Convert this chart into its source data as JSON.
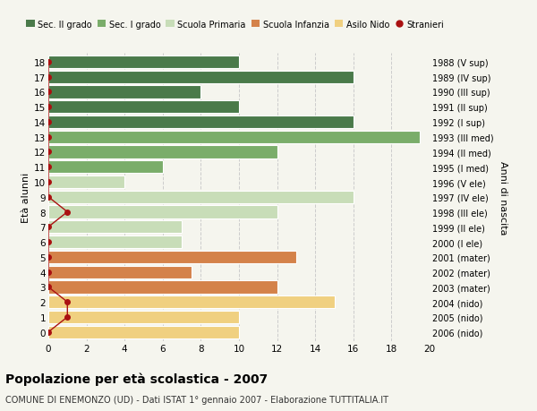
{
  "ages": [
    18,
    17,
    16,
    15,
    14,
    13,
    12,
    11,
    10,
    9,
    8,
    7,
    6,
    5,
    4,
    3,
    2,
    1,
    0
  ],
  "years": [
    "1988 (V sup)",
    "1989 (IV sup)",
    "1990 (III sup)",
    "1991 (II sup)",
    "1992 (I sup)",
    "1993 (III med)",
    "1994 (II med)",
    "1995 (I med)",
    "1996 (V ele)",
    "1997 (IV ele)",
    "1998 (III ele)",
    "1999 (II ele)",
    "2000 (I ele)",
    "2001 (mater)",
    "2002 (mater)",
    "2003 (mater)",
    "2004 (nido)",
    "2005 (nido)",
    "2006 (nido)"
  ],
  "bar_values": [
    10,
    16,
    8,
    10,
    16,
    19.5,
    12,
    6,
    4,
    16,
    12,
    7,
    7,
    13,
    7.5,
    12,
    15,
    10,
    10
  ],
  "bar_colors": [
    "#4a7a4a",
    "#4a7a4a",
    "#4a7a4a",
    "#4a7a4a",
    "#4a7a4a",
    "#7aad6a",
    "#7aad6a",
    "#7aad6a",
    "#c8ddb8",
    "#c8ddb8",
    "#c8ddb8",
    "#c8ddb8",
    "#c8ddb8",
    "#d4824a",
    "#d4824a",
    "#d4824a",
    "#f0d080",
    "#f0d080",
    "#f0d080"
  ],
  "stranieri_values": [
    0,
    0,
    0,
    0,
    0,
    0,
    0,
    0,
    0,
    0,
    1,
    0,
    0,
    0,
    0,
    0,
    1,
    1,
    0
  ],
  "legend_labels": [
    "Sec. II grado",
    "Sec. I grado",
    "Scuola Primaria",
    "Scuola Infanzia",
    "Asilo Nido",
    "Stranieri"
  ],
  "legend_colors": [
    "#4a7a4a",
    "#7aad6a",
    "#c8ddb8",
    "#d4824a",
    "#f0d080",
    "#aa1111"
  ],
  "title": "Popolazione per età scolastica - 2007",
  "subtitle": "COMUNE DI ENEMONZO (UD) - Dati ISTAT 1° gennaio 2007 - Elaborazione TUTTITALIA.IT",
  "ylabel_left": "Età alunni",
  "ylabel_right": "Anni di nascita",
  "xlim": [
    0,
    20
  ],
  "xticks": [
    0,
    2,
    4,
    6,
    8,
    10,
    12,
    14,
    16,
    18,
    20
  ],
  "bg_color": "#f5f5ee",
  "bar_height": 0.85,
  "grid_color": "#cccccc"
}
